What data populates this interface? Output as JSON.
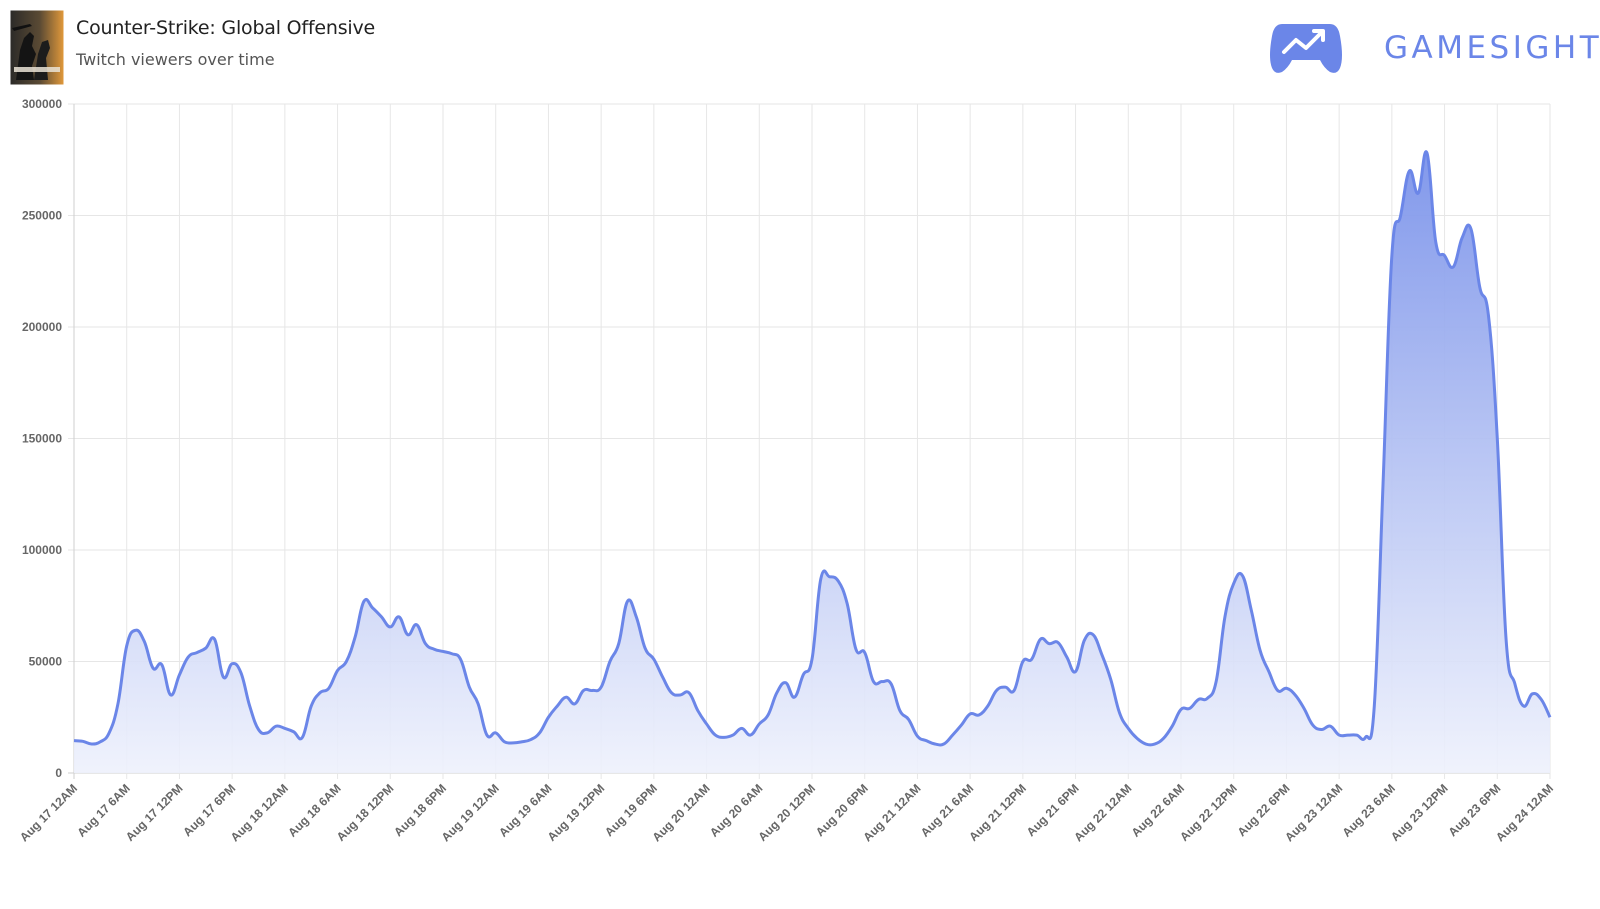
{
  "header": {
    "title": "Counter-Strike: Global Offensive",
    "subtitle": "Twitch viewers over time",
    "thumbnail_icon": "csgo-box-art-icon",
    "brand_icon": "gamepad-chart-icon",
    "brand_name": "GAMESIGHT"
  },
  "colors": {
    "line": "#6b86e8",
    "fill_top": "#7b93ea",
    "fill_bottom": "#eef1fc",
    "grid": "#e6e6e6",
    "brand": "#6b86e8"
  },
  "chart_data": {
    "type": "area",
    "title": "",
    "xlabel": "",
    "ylabel": "",
    "ylim": [
      0,
      300000
    ],
    "y_ticks": [
      0,
      50000,
      100000,
      150000,
      200000,
      250000,
      300000
    ],
    "x_tick_labels": [
      "Aug 17 12AM",
      "Aug 17 6AM",
      "Aug 17 12PM",
      "Aug 17 6PM",
      "Aug 18 12AM",
      "Aug 18 6AM",
      "Aug 18 12PM",
      "Aug 18 6PM",
      "Aug 19 12AM",
      "Aug 19 6AM",
      "Aug 19 12PM",
      "Aug 19 6PM",
      "Aug 20 12AM",
      "Aug 20 6AM",
      "Aug 20 12PM",
      "Aug 20 6PM",
      "Aug 21 12AM",
      "Aug 21 6AM",
      "Aug 21 12PM",
      "Aug 21 6PM",
      "Aug 22 12AM",
      "Aug 22 6AM",
      "Aug 22 12PM",
      "Aug 22 6PM",
      "Aug 23 12AM",
      "Aug 23 6AM",
      "Aug 23 12PM",
      "Aug 23 6PM",
      "Aug 24 12AM"
    ],
    "grid": true,
    "legend": "none",
    "series": [
      {
        "points": [
          [
            "Aug 17 12AM",
            14500
          ],
          [
            "Aug 17 1AM",
            14200
          ],
          [
            "Aug 17 2AM",
            13000
          ],
          [
            "Aug 17 3AM",
            14000
          ],
          [
            "Aug 17 4AM",
            18000
          ],
          [
            "Aug 17 5AM",
            31000
          ],
          [
            "Aug 17 6AM",
            57000
          ],
          [
            "Aug 17 7AM",
            64000
          ],
          [
            "Aug 17 8AM",
            59000
          ],
          [
            "Aug 17 9AM",
            47000
          ],
          [
            "Aug 17 10AM",
            48500
          ],
          [
            "Aug 17 11AM",
            35000
          ],
          [
            "Aug 17 12PM",
            44000
          ],
          [
            "Aug 17 1PM",
            52000
          ],
          [
            "Aug 17 2PM",
            54000
          ],
          [
            "Aug 17 3PM",
            56000
          ],
          [
            "Aug 17 4PM",
            60000
          ],
          [
            "Aug 17 5PM",
            43000
          ],
          [
            "Aug 17 6PM",
            49000
          ],
          [
            "Aug 17 7PM",
            45000
          ],
          [
            "Aug 17 8PM",
            30000
          ],
          [
            "Aug 17 9PM",
            19500
          ],
          [
            "Aug 17 10PM",
            18000
          ],
          [
            "Aug 17 11PM",
            21000
          ],
          [
            "Aug 18 12AM",
            20000
          ],
          [
            "Aug 18 1AM",
            18500
          ],
          [
            "Aug 18 2AM",
            16000
          ],
          [
            "Aug 18 3AM",
            30000
          ],
          [
            "Aug 18 4AM",
            36000
          ],
          [
            "Aug 18 5AM",
            38000
          ],
          [
            "Aug 18 6AM",
            46000
          ],
          [
            "Aug 18 7AM",
            50000
          ],
          [
            "Aug 18 8AM",
            61000
          ],
          [
            "Aug 18 9AM",
            77000
          ],
          [
            "Aug 18 10AM",
            74000
          ],
          [
            "Aug 18 11AM",
            70000
          ],
          [
            "Aug 18 12PM",
            65500
          ],
          [
            "Aug 18 1PM",
            70000
          ],
          [
            "Aug 18 2PM",
            62000
          ],
          [
            "Aug 18 3PM",
            66500
          ],
          [
            "Aug 18 4PM",
            58000
          ],
          [
            "Aug 18 5PM",
            55500
          ],
          [
            "Aug 18 6PM",
            54500
          ],
          [
            "Aug 18 7PM",
            53500
          ],
          [
            "Aug 18 8PM",
            51000
          ],
          [
            "Aug 18 9PM",
            38500
          ],
          [
            "Aug 18 10PM",
            31000
          ],
          [
            "Aug 18 11PM",
            17000
          ],
          [
            "Aug 19 12AM",
            18000
          ],
          [
            "Aug 19 1AM",
            14000
          ],
          [
            "Aug 19 2AM",
            13500
          ],
          [
            "Aug 19 3AM",
            14000
          ],
          [
            "Aug 19 4AM",
            15000
          ],
          [
            "Aug 19 5AM",
            18000
          ],
          [
            "Aug 19 6AM",
            25000
          ],
          [
            "Aug 19 7AM",
            30000
          ],
          [
            "Aug 19 8AM",
            34000
          ],
          [
            "Aug 19 9AM",
            31000
          ],
          [
            "Aug 19 10AM",
            37000
          ],
          [
            "Aug 19 11AM",
            37000
          ],
          [
            "Aug 19 12PM",
            38500
          ],
          [
            "Aug 19 1PM",
            50000
          ],
          [
            "Aug 19 2PM",
            58000
          ],
          [
            "Aug 19 3PM",
            77000
          ],
          [
            "Aug 19 4PM",
            70000
          ],
          [
            "Aug 19 5PM",
            56000
          ],
          [
            "Aug 19 6PM",
            51000
          ],
          [
            "Aug 19 7PM",
            43000
          ],
          [
            "Aug 19 8PM",
            36000
          ],
          [
            "Aug 19 9PM",
            35000
          ],
          [
            "Aug 19 10PM",
            36000
          ],
          [
            "Aug 19 11PM",
            28000
          ],
          [
            "Aug 20 12AM",
            22000
          ],
          [
            "Aug 20 1AM",
            17000
          ],
          [
            "Aug 20 2AM",
            16000
          ],
          [
            "Aug 20 3AM",
            17000
          ],
          [
            "Aug 20 4AM",
            20000
          ],
          [
            "Aug 20 5AM",
            17000
          ],
          [
            "Aug 20 6AM",
            22000
          ],
          [
            "Aug 20 7AM",
            26000
          ],
          [
            "Aug 20 8AM",
            36000
          ],
          [
            "Aug 20 9AM",
            40500
          ],
          [
            "Aug 20 10AM",
            34000
          ],
          [
            "Aug 20 11AM",
            44000
          ],
          [
            "Aug 20 12PM",
            51000
          ],
          [
            "Aug 20 1PM",
            87000
          ],
          [
            "Aug 20 2PM",
            88000
          ],
          [
            "Aug 20 3PM",
            86000
          ],
          [
            "Aug 20 4PM",
            76000
          ],
          [
            "Aug 20 5PM",
            55500
          ],
          [
            "Aug 20 6PM",
            54000
          ],
          [
            "Aug 20 7PM",
            41000
          ],
          [
            "Aug 20 8PM",
            41000
          ],
          [
            "Aug 20 9PM",
            40000
          ],
          [
            "Aug 20 10PM",
            28000
          ],
          [
            "Aug 20 11PM",
            24000
          ],
          [
            "Aug 21 12AM",
            16500
          ],
          [
            "Aug 21 1AM",
            14500
          ],
          [
            "Aug 21 2AM",
            13000
          ],
          [
            "Aug 21 3AM",
            13000
          ],
          [
            "Aug 21 4AM",
            17000
          ],
          [
            "Aug 21 5AM",
            21500
          ],
          [
            "Aug 21 6AM",
            26500
          ],
          [
            "Aug 21 7AM",
            26000
          ],
          [
            "Aug 21 8AM",
            30000
          ],
          [
            "Aug 21 9AM",
            37000
          ],
          [
            "Aug 21 10AM",
            38500
          ],
          [
            "Aug 21 11AM",
            37000
          ],
          [
            "Aug 21 12PM",
            50000
          ],
          [
            "Aug 21 1PM",
            51000
          ],
          [
            "Aug 21 2PM",
            60000
          ],
          [
            "Aug 21 3PM",
            58000
          ],
          [
            "Aug 21 4PM",
            58500
          ],
          [
            "Aug 21 5PM",
            52000
          ],
          [
            "Aug 21 6PM",
            45500
          ],
          [
            "Aug 21 7PM",
            59500
          ],
          [
            "Aug 21 8PM",
            62000
          ],
          [
            "Aug 21 9PM",
            53000
          ],
          [
            "Aug 21 10PM",
            42000
          ],
          [
            "Aug 21 11PM",
            27000
          ],
          [
            "Aug 22 12AM",
            20000
          ],
          [
            "Aug 22 1AM",
            15500
          ],
          [
            "Aug 22 2AM",
            13000
          ],
          [
            "Aug 22 3AM",
            13000
          ],
          [
            "Aug 22 4AM",
            15500
          ],
          [
            "Aug 22 5AM",
            21000
          ],
          [
            "Aug 22 6AM",
            28500
          ],
          [
            "Aug 22 7AM",
            29000
          ],
          [
            "Aug 22 8AM",
            33000
          ],
          [
            "Aug 22 9AM",
            33500
          ],
          [
            "Aug 22 10AM",
            41000
          ],
          [
            "Aug 22 11AM",
            70000
          ],
          [
            "Aug 22 12PM",
            85000
          ],
          [
            "Aug 22 1PM",
            88500
          ],
          [
            "Aug 22 2PM",
            73000
          ],
          [
            "Aug 22 3PM",
            55000
          ],
          [
            "Aug 22 4PM",
            45500
          ],
          [
            "Aug 22 5PM",
            37000
          ],
          [
            "Aug 22 6PM",
            38000
          ],
          [
            "Aug 22 7PM",
            35000
          ],
          [
            "Aug 22 8PM",
            29000
          ],
          [
            "Aug 22 9PM",
            21500
          ],
          [
            "Aug 22 10PM",
            19500
          ],
          [
            "Aug 22 11PM",
            21000
          ],
          [
            "Aug 23 12AM",
            17000
          ],
          [
            "Aug 23 1AM",
            17000
          ],
          [
            "Aug 23 2AM",
            17000
          ],
          [
            "Aug 23 3AM",
            16000
          ],
          [
            "Aug 23 4AM",
            30000
          ],
          [
            "Aug 23 5AM",
            130000
          ],
          [
            "Aug 23 6AM",
            232000
          ],
          [
            "Aug 23 7AM",
            250000
          ],
          [
            "Aug 23 8AM",
            270000
          ],
          [
            "Aug 23 9AM",
            260000
          ],
          [
            "Aug 23 10AM",
            278000
          ],
          [
            "Aug 23 11AM",
            238000
          ],
          [
            "Aug 23 12PM",
            232000
          ],
          [
            "Aug 23 1PM",
            227000
          ],
          [
            "Aug 23 2PM",
            240000
          ],
          [
            "Aug 23 3PM",
            244000
          ],
          [
            "Aug 23 4PM",
            218000
          ],
          [
            "Aug 23 5PM",
            205000
          ],
          [
            "Aug 23 6PM",
            150000
          ],
          [
            "Aug 23 7PM",
            60000
          ],
          [
            "Aug 23 8PM",
            40000
          ],
          [
            "Aug 23 9PM",
            30000
          ],
          [
            "Aug 23 10PM",
            35500
          ],
          [
            "Aug 23 11PM",
            33000
          ],
          [
            "Aug 24 12AM",
            25000
          ]
        ]
      }
    ]
  }
}
